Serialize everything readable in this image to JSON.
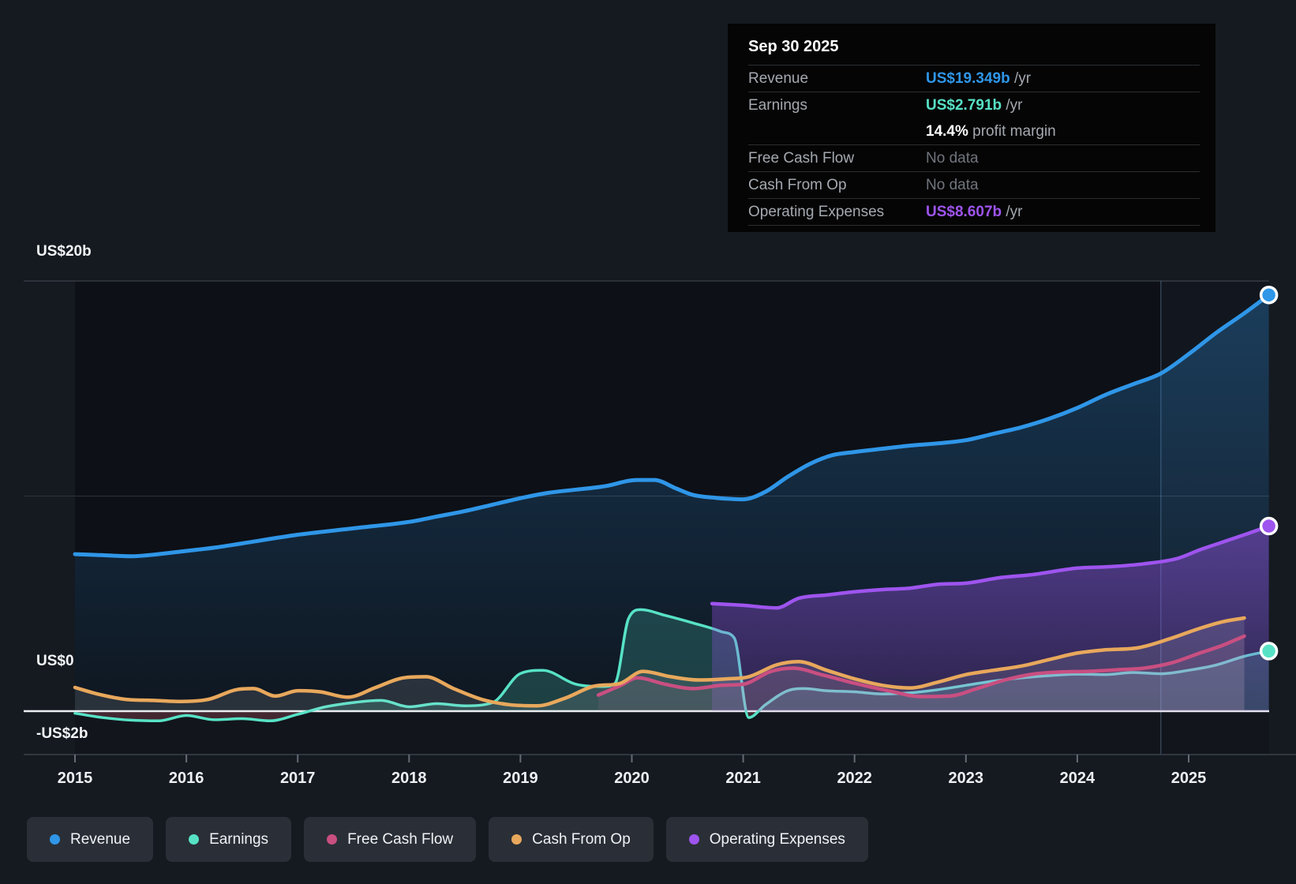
{
  "tooltip": {
    "title": "Sep 30 2025",
    "rows": [
      {
        "label": "Revenue",
        "value": "US$19.349b",
        "unit": " /yr",
        "color": "#2f96e8"
      },
      {
        "label": "Earnings",
        "value": "US$2.791b",
        "unit": " /yr",
        "color": "#57e2c6",
        "margin_value": "14.4%",
        "margin_text": " profit margin"
      },
      {
        "label": "Free Cash Flow",
        "value": "No data",
        "unit": "",
        "color": "#70757d"
      },
      {
        "label": "Cash From Op",
        "value": "No data",
        "unit": "",
        "color": "#70757d"
      },
      {
        "label": "Operating Expenses",
        "value": "US$8.607b",
        "unit": " /yr",
        "color": "#9e54ee"
      }
    ]
  },
  "legend": {
    "items": [
      {
        "label": "Revenue",
        "color": "#2f96e8"
      },
      {
        "label": "Earnings",
        "color": "#57e2c6"
      },
      {
        "label": "Free Cash Flow",
        "color": "#c94f81"
      },
      {
        "label": "Cash From Op",
        "color": "#e8a85c"
      },
      {
        "label": "Operating Expenses",
        "color": "#9e54ee"
      }
    ]
  },
  "chart_data": {
    "type": "area",
    "units": "US$ billions per year",
    "x_ticks": [
      2015,
      2016,
      2017,
      2018,
      2019,
      2020,
      2021,
      2022,
      2023,
      2024,
      2025
    ],
    "ylim": [
      -2,
      20
    ],
    "y_gridlines": [
      {
        "value": 20,
        "label": "US$20b"
      },
      {
        "value": 10,
        "label": ""
      },
      {
        "value": 0,
        "label": "US$0"
      },
      {
        "value": -2,
        "label": "-US$2b"
      }
    ],
    "divider_x": 2024.75,
    "series": [
      {
        "name": "Revenue",
        "color": "#2f96e8",
        "end_marker": true,
        "points": [
          [
            2015,
            7.3
          ],
          [
            2015.25,
            7.25
          ],
          [
            2015.5,
            7.2
          ],
          [
            2015.75,
            7.3
          ],
          [
            2016,
            7.45
          ],
          [
            2016.25,
            7.6
          ],
          [
            2016.5,
            7.8
          ],
          [
            2017,
            8.2
          ],
          [
            2017.5,
            8.5
          ],
          [
            2018,
            8.8
          ],
          [
            2018.25,
            9.05
          ],
          [
            2018.5,
            9.3
          ],
          [
            2018.75,
            9.6
          ],
          [
            2019,
            9.9
          ],
          [
            2019.25,
            10.15
          ],
          [
            2019.5,
            10.3
          ],
          [
            2019.75,
            10.45
          ],
          [
            2020.05,
            10.75
          ],
          [
            2020.2,
            10.75
          ],
          [
            2020.4,
            10.35
          ],
          [
            2020.55,
            10.05
          ],
          [
            2020.75,
            9.92
          ],
          [
            2021,
            9.85
          ],
          [
            2021.2,
            10.2
          ],
          [
            2021.4,
            10.9
          ],
          [
            2021.6,
            11.5
          ],
          [
            2021.8,
            11.9
          ],
          [
            2022,
            12.05
          ],
          [
            2022.25,
            12.2
          ],
          [
            2022.5,
            12.35
          ],
          [
            2022.75,
            12.45
          ],
          [
            2023,
            12.6
          ],
          [
            2023.25,
            12.9
          ],
          [
            2023.5,
            13.2
          ],
          [
            2023.75,
            13.6
          ],
          [
            2024,
            14.1
          ],
          [
            2024.25,
            14.7
          ],
          [
            2024.5,
            15.2
          ],
          [
            2024.75,
            15.7
          ],
          [
            2025,
            16.6
          ],
          [
            2025.25,
            17.6
          ],
          [
            2025.5,
            18.5
          ],
          [
            2025.72,
            19.349
          ]
        ]
      },
      {
        "name": "Earnings",
        "color": "#57e2c6",
        "end_marker": true,
        "points": [
          [
            2015,
            -0.1
          ],
          [
            2015.25,
            -0.3
          ],
          [
            2015.5,
            -0.42
          ],
          [
            2015.75,
            -0.45
          ],
          [
            2016,
            -0.2
          ],
          [
            2016.25,
            -0.4
          ],
          [
            2016.5,
            -0.35
          ],
          [
            2016.75,
            -0.45
          ],
          [
            2017,
            -0.15
          ],
          [
            2017.25,
            0.2
          ],
          [
            2017.5,
            0.4
          ],
          [
            2017.75,
            0.5
          ],
          [
            2018,
            0.2
          ],
          [
            2018.25,
            0.35
          ],
          [
            2018.5,
            0.25
          ],
          [
            2018.75,
            0.4
          ],
          [
            2019,
            1.75
          ],
          [
            2019.2,
            1.9
          ],
          [
            2019.5,
            1.25
          ],
          [
            2019.75,
            1.15
          ],
          [
            2019.85,
            1.3
          ],
          [
            2019.97,
            4.3
          ],
          [
            2020.08,
            4.72
          ],
          [
            2020.3,
            4.45
          ],
          [
            2020.55,
            4.1
          ],
          [
            2020.8,
            3.7
          ],
          [
            2020.92,
            3.4
          ],
          [
            2021.05,
            -0.3
          ],
          [
            2021.2,
            0.3
          ],
          [
            2021.4,
            0.95
          ],
          [
            2021.55,
            1.05
          ],
          [
            2021.75,
            0.95
          ],
          [
            2022,
            0.9
          ],
          [
            2022.25,
            0.8
          ],
          [
            2022.5,
            0.85
          ],
          [
            2022.75,
            1.0
          ],
          [
            2023,
            1.2
          ],
          [
            2023.25,
            1.4
          ],
          [
            2023.5,
            1.55
          ],
          [
            2023.75,
            1.65
          ],
          [
            2024,
            1.72
          ],
          [
            2024.25,
            1.7
          ],
          [
            2024.5,
            1.8
          ],
          [
            2024.75,
            1.74
          ],
          [
            2025,
            1.9
          ],
          [
            2025.25,
            2.15
          ],
          [
            2025.5,
            2.55
          ],
          [
            2025.72,
            2.791
          ]
        ]
      },
      {
        "name": "Free Cash Flow",
        "color": "#c94f81",
        "end_marker": false,
        "points": [
          [
            2019.7,
            0.75
          ],
          [
            2019.9,
            1.2
          ],
          [
            2020.05,
            1.55
          ],
          [
            2020.3,
            1.25
          ],
          [
            2020.55,
            1.05
          ],
          [
            2020.8,
            1.2
          ],
          [
            2021,
            1.25
          ],
          [
            2021.25,
            1.85
          ],
          [
            2021.45,
            2.0
          ],
          [
            2021.7,
            1.7
          ],
          [
            2022,
            1.3
          ],
          [
            2022.3,
            0.95
          ],
          [
            2022.6,
            0.68
          ],
          [
            2022.85,
            0.7
          ],
          [
            2023.1,
            1.05
          ],
          [
            2023.35,
            1.45
          ],
          [
            2023.6,
            1.72
          ],
          [
            2023.85,
            1.82
          ],
          [
            2024.1,
            1.85
          ],
          [
            2024.35,
            1.92
          ],
          [
            2024.6,
            2.0
          ],
          [
            2024.85,
            2.25
          ],
          [
            2025.1,
            2.7
          ],
          [
            2025.3,
            3.05
          ],
          [
            2025.5,
            3.49
          ]
        ]
      },
      {
        "name": "Cash From Op",
        "color": "#e8a85c",
        "end_marker": false,
        "points": [
          [
            2015,
            1.1
          ],
          [
            2015.2,
            0.8
          ],
          [
            2015.45,
            0.55
          ],
          [
            2015.7,
            0.5
          ],
          [
            2015.95,
            0.45
          ],
          [
            2016.2,
            0.55
          ],
          [
            2016.45,
            1.0
          ],
          [
            2016.6,
            1.05
          ],
          [
            2016.8,
            0.7
          ],
          [
            2017,
            0.95
          ],
          [
            2017.2,
            0.9
          ],
          [
            2017.45,
            0.65
          ],
          [
            2017.7,
            1.1
          ],
          [
            2017.95,
            1.55
          ],
          [
            2018.15,
            1.6
          ],
          [
            2018.4,
            1.05
          ],
          [
            2018.65,
            0.55
          ],
          [
            2018.9,
            0.3
          ],
          [
            2019.15,
            0.25
          ],
          [
            2019.4,
            0.6
          ],
          [
            2019.65,
            1.15
          ],
          [
            2019.9,
            1.3
          ],
          [
            2020.1,
            1.85
          ],
          [
            2020.35,
            1.6
          ],
          [
            2020.6,
            1.45
          ],
          [
            2020.85,
            1.5
          ],
          [
            2021.05,
            1.6
          ],
          [
            2021.3,
            2.15
          ],
          [
            2021.5,
            2.3
          ],
          [
            2021.75,
            1.9
          ],
          [
            2022,
            1.5
          ],
          [
            2022.25,
            1.2
          ],
          [
            2022.5,
            1.08
          ],
          [
            2022.75,
            1.35
          ],
          [
            2023,
            1.7
          ],
          [
            2023.25,
            1.9
          ],
          [
            2023.5,
            2.1
          ],
          [
            2023.75,
            2.4
          ],
          [
            2024,
            2.7
          ],
          [
            2024.25,
            2.85
          ],
          [
            2024.55,
            2.95
          ],
          [
            2024.85,
            3.4
          ],
          [
            2025.1,
            3.85
          ],
          [
            2025.3,
            4.15
          ],
          [
            2025.5,
            4.33
          ]
        ]
      },
      {
        "name": "Operating Expenses",
        "color": "#9e54ee",
        "end_marker": true,
        "points": [
          [
            2020.72,
            5.0
          ],
          [
            2021,
            4.92
          ],
          [
            2021.3,
            4.8
          ],
          [
            2021.5,
            5.25
          ],
          [
            2021.75,
            5.4
          ],
          [
            2022,
            5.55
          ],
          [
            2022.25,
            5.65
          ],
          [
            2022.5,
            5.72
          ],
          [
            2022.75,
            5.9
          ],
          [
            2023,
            5.95
          ],
          [
            2023.3,
            6.2
          ],
          [
            2023.6,
            6.35
          ],
          [
            2024,
            6.65
          ],
          [
            2024.3,
            6.72
          ],
          [
            2024.6,
            6.85
          ],
          [
            2024.9,
            7.1
          ],
          [
            2025.1,
            7.5
          ],
          [
            2025.3,
            7.85
          ],
          [
            2025.5,
            8.2
          ],
          [
            2025.72,
            8.607
          ]
        ]
      }
    ]
  }
}
